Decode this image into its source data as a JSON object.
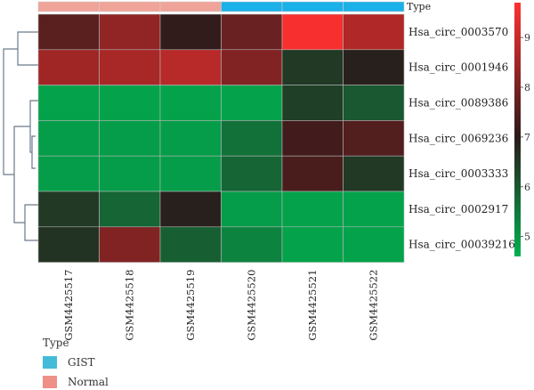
{
  "chart_data": {
    "type": "heatmap",
    "title": "",
    "columns": [
      "GSM4425517",
      "GSM4425518",
      "GSM4425519",
      "GSM4425520",
      "GSM4425521",
      "GSM4425522"
    ],
    "column_groups": [
      "Normal",
      "Normal",
      "Normal",
      "GIST",
      "GIST",
      "GIST"
    ],
    "rows": [
      "Hsa_circ_0003570",
      "Hsa_circ_0001946",
      "Hsa_circ_0089386",
      "Hsa_circ_0069236",
      "Hsa_circ_0003333",
      "Hsa_circ_0002917",
      "Hsa_circ_00039216"
    ],
    "values": [
      [
        7.6,
        8.3,
        7.1,
        7.8,
        9.6,
        8.7
      ],
      [
        8.5,
        8.6,
        8.8,
        8.1,
        6.5,
        6.9
      ],
      [
        4.8,
        4.8,
        4.8,
        4.8,
        6.4,
        6.0
      ],
      [
        4.9,
        4.9,
        4.9,
        5.6,
        7.3,
        7.5
      ],
      [
        4.9,
        4.9,
        4.9,
        5.8,
        7.4,
        6.5
      ],
      [
        6.5,
        5.8,
        6.9,
        4.9,
        4.8,
        4.8
      ],
      [
        6.6,
        8.1,
        5.9,
        5.3,
        4.8,
        4.8
      ]
    ],
    "color_scale": {
      "range": [
        4.6,
        9.7
      ],
      "ticks": [
        5,
        6,
        7,
        8,
        9
      ],
      "colors": [
        "#00b050",
        "#2a1a1a",
        "#ff3030"
      ]
    },
    "annotation_label": "Type",
    "legend": {
      "title": "Type",
      "items": [
        {
          "label": "GIST",
          "color": "#44bbd8"
        },
        {
          "label": "Normal",
          "color": "#ee9088"
        }
      ]
    },
    "type_colors": {
      "GIST": "#1ab0e8",
      "Normal": "#f0a398"
    }
  }
}
